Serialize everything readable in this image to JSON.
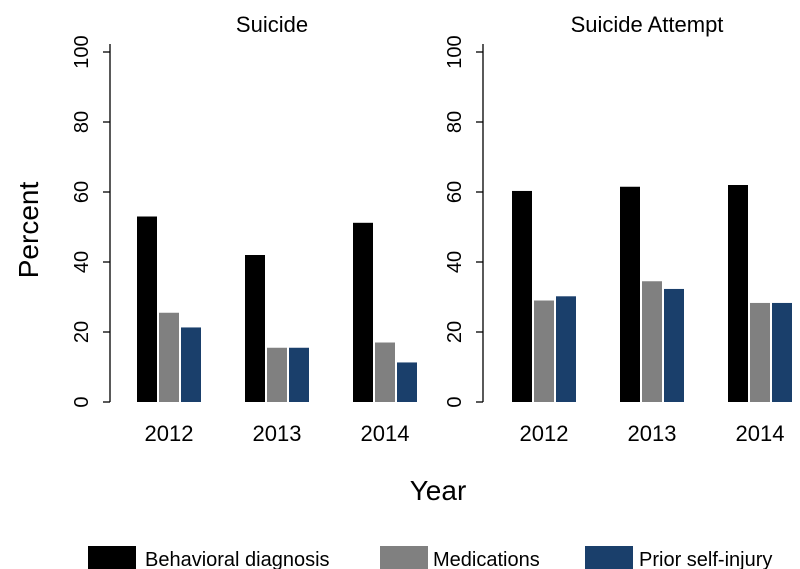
{
  "chart_data": {
    "type": "bar",
    "ylabel": "Percent",
    "xlabel": "Year",
    "ylim": [
      0,
      100
    ],
    "yticks": [
      0,
      20,
      40,
      60,
      80,
      100
    ],
    "legend": "bottom",
    "categories": [
      "2012",
      "2013",
      "2014"
    ],
    "series_names": [
      "Behavioral diagnosis",
      "Medications",
      "Prior self-injury"
    ],
    "colors": [
      "#000000",
      "#808080",
      "#1a3f6b"
    ],
    "panels": [
      {
        "title": "Suicide",
        "values": [
          [
            53,
            25.5,
            21.3
          ],
          [
            42,
            15.5,
            15.5
          ],
          [
            51.2,
            17,
            11.3
          ]
        ]
      },
      {
        "title": "Suicide Attempt",
        "values": [
          [
            60.3,
            29,
            30.2
          ],
          [
            61.5,
            34.5,
            32.3
          ],
          [
            62,
            28.3,
            28.3
          ]
        ]
      }
    ]
  }
}
